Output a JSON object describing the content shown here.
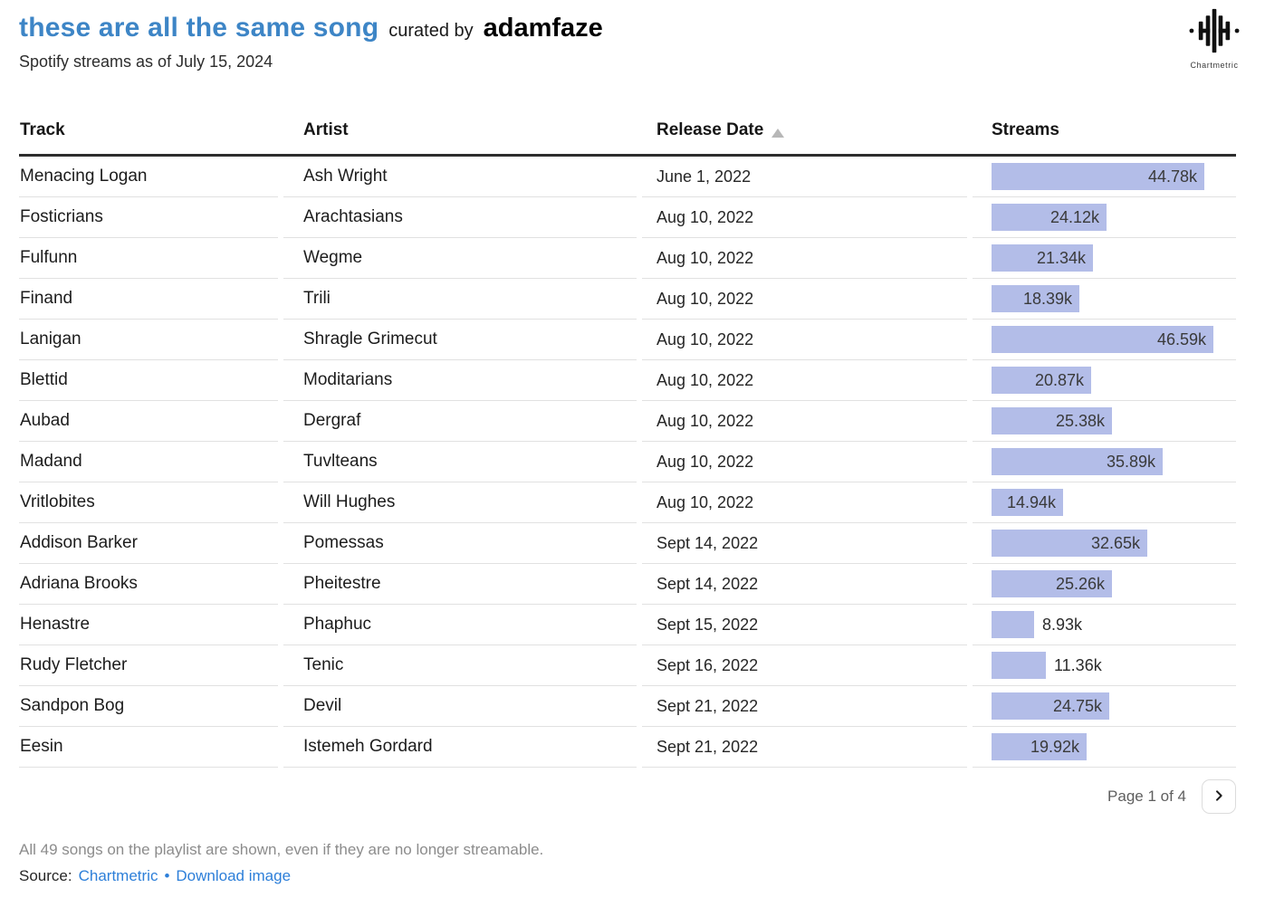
{
  "header": {
    "title": "these are all the same song",
    "curated_prefix": "curated by",
    "curator": "adamfaze",
    "subtitle": "Spotify streams as of July 15, 2024",
    "logo_label": "Chartmetric"
  },
  "table": {
    "columns": [
      "Track",
      "Artist",
      "Release Date",
      "Streams"
    ],
    "sort": {
      "column": "Release Date",
      "direction": "ascending"
    },
    "max_streams_k": 46.59,
    "rows": [
      {
        "track": "Menacing Logan",
        "artist": "Ash Wright",
        "release_date": "June 1, 2022",
        "streams_k": 44.78,
        "streams_label": "44.78k"
      },
      {
        "track": "Fosticrians",
        "artist": "Arachtasians",
        "release_date": "Aug 10, 2022",
        "streams_k": 24.12,
        "streams_label": "24.12k"
      },
      {
        "track": "Fulfunn",
        "artist": "Wegme",
        "release_date": "Aug 10, 2022",
        "streams_k": 21.34,
        "streams_label": "21.34k"
      },
      {
        "track": "Finand",
        "artist": "Trili",
        "release_date": "Aug 10, 2022",
        "streams_k": 18.39,
        "streams_label": "18.39k"
      },
      {
        "track": "Lanigan",
        "artist": "Shragle Grimecut",
        "release_date": "Aug 10, 2022",
        "streams_k": 46.59,
        "streams_label": "46.59k"
      },
      {
        "track": "Blettid",
        "artist": "Moditarians",
        "release_date": "Aug 10, 2022",
        "streams_k": 20.87,
        "streams_label": "20.87k"
      },
      {
        "track": "Aubad",
        "artist": "Dergraf",
        "release_date": "Aug 10, 2022",
        "streams_k": 25.38,
        "streams_label": "25.38k"
      },
      {
        "track": "Madand",
        "artist": "Tuvlteans",
        "release_date": "Aug 10, 2022",
        "streams_k": 35.89,
        "streams_label": "35.89k"
      },
      {
        "track": "Vritlobites",
        "artist": "Will Hughes",
        "release_date": "Aug 10, 2022",
        "streams_k": 14.94,
        "streams_label": "14.94k"
      },
      {
        "track": "Addison Barker",
        "artist": "Pomessas",
        "release_date": "Sept 14, 2022",
        "streams_k": 32.65,
        "streams_label": "32.65k"
      },
      {
        "track": "Adriana Brooks",
        "artist": "Pheitestre",
        "release_date": "Sept 14, 2022",
        "streams_k": 25.26,
        "streams_label": "25.26k"
      },
      {
        "track": "Henastre",
        "artist": "Phaphuc",
        "release_date": "Sept 15, 2022",
        "streams_k": 8.93,
        "streams_label": "8.93k"
      },
      {
        "track": "Rudy Fletcher",
        "artist": "Tenic",
        "release_date": "Sept 16, 2022",
        "streams_k": 11.36,
        "streams_label": "11.36k"
      },
      {
        "track": "Sandpon Bog",
        "artist": "Devil",
        "release_date": "Sept 21, 2022",
        "streams_k": 24.75,
        "streams_label": "24.75k"
      },
      {
        "track": "Eesin",
        "artist": "Istemeh Gordard",
        "release_date": "Sept 21, 2022",
        "streams_k": 19.92,
        "streams_label": "19.92k"
      }
    ]
  },
  "pagination": {
    "label": "Page 1 of 4"
  },
  "footer": {
    "note": "All 49 songs on the playlist are shown, even if they are no longer streamable.",
    "source_prefix": "Source:",
    "source_link": "Chartmetric",
    "separator": "•",
    "download_link": "Download image"
  },
  "colors": {
    "title_blue": "#3d85c6",
    "link_blue": "#2d7fd9",
    "bar_fill": "#b3bde8",
    "header_rule": "#2d2d2d",
    "row_divider": "#e1e1e1",
    "muted_gray": "#8c8c8c"
  },
  "chart_data": {
    "type": "bar",
    "orientation": "horizontal",
    "title": "these are all the same song — Spotify streams as of July 15, 2024",
    "categories": [
      "Menacing Logan",
      "Fosticrians",
      "Fulfunn",
      "Finand",
      "Lanigan",
      "Blettid",
      "Aubad",
      "Madand",
      "Vritlobites",
      "Addison Barker",
      "Adriana Brooks",
      "Henastre",
      "Rudy Fletcher",
      "Sandpon Bog",
      "Eesin"
    ],
    "values_thousands": [
      44.78,
      24.12,
      21.34,
      18.39,
      46.59,
      20.87,
      25.38,
      35.89,
      14.94,
      32.65,
      25.26,
      8.93,
      11.36,
      24.75,
      19.92
    ],
    "value_labels": [
      "44.78k",
      "24.12k",
      "21.34k",
      "18.39k",
      "46.59k",
      "20.87k",
      "25.38k",
      "35.89k",
      "14.94k",
      "32.65k",
      "25.26k",
      "8.93k",
      "11.36k",
      "24.75k",
      "19.92k"
    ],
    "xlabel": "Streams",
    "xlim_thousands": [
      0,
      46.59
    ],
    "grid": false,
    "legend": false,
    "bar_color": "#b3bde8"
  }
}
